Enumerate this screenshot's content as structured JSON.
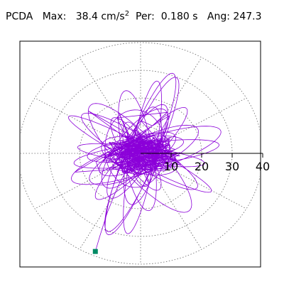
{
  "header": {
    "label": "PCDA",
    "max_label": "Max:",
    "max_value": "38.4",
    "max_unit": "cm/s",
    "max_unit_exp": "2",
    "per_label": "Per:",
    "per_value": "0.180",
    "per_unit": "s",
    "ang_label": "Ang:",
    "ang_value": "247.3"
  },
  "chart_data": {
    "type": "polar-trace",
    "title": "PCDA",
    "radial_ticks": [
      10,
      20,
      30,
      40
    ],
    "radial_tick_labels": [
      "10",
      "20",
      "30",
      "40"
    ],
    "rmax": 40,
    "angular_grid_deg": [
      0,
      30,
      60,
      90,
      120,
      150,
      180,
      210,
      240,
      270,
      300,
      330
    ],
    "grid": true,
    "max_magnitude": 38.4,
    "max_angle_deg": 247.3,
    "period_s": 0.18,
    "colors": {
      "trace": "#8b00d9",
      "marker": "#008a64",
      "grid": "#666666",
      "axis": "#000000"
    },
    "series": [
      {
        "loops": [
          {
            "a": 10,
            "b": 4,
            "theta": 12
          },
          {
            "a": 14,
            "b": 5,
            "theta": 28
          },
          {
            "a": 16,
            "b": 4,
            "theta": 10
          },
          {
            "a": 13,
            "b": 6,
            "theta": 162
          },
          {
            "a": 11,
            "b": 4,
            "theta": 175
          },
          {
            "a": 19,
            "b": 5,
            "theta": 62
          },
          {
            "a": 22,
            "b": 4.5,
            "theta": 48
          },
          {
            "a": 17,
            "b": 6,
            "theta": 55
          },
          {
            "a": 15,
            "b": 4,
            "theta": 120
          },
          {
            "a": 12,
            "b": 3.5,
            "theta": 105
          },
          {
            "a": 18,
            "b": 5,
            "theta": 78
          },
          {
            "a": 24,
            "b": 4,
            "theta": 8
          },
          {
            "a": 21,
            "b": 3,
            "theta": 172
          },
          {
            "a": 20,
            "b": 6,
            "theta": 28
          },
          {
            "a": 14,
            "b": 10,
            "theta": 90
          },
          {
            "a": 9,
            "b": 6,
            "theta": 40
          },
          {
            "a": 30,
            "b": 5,
            "theta": 68
          },
          {
            "a": 28,
            "b": 4,
            "theta": 80
          },
          {
            "a": 25,
            "b": 7,
            "theta": 130
          },
          {
            "a": 23,
            "b": 5,
            "theta": 145
          },
          {
            "a": 26,
            "b": 6,
            "theta": 20
          },
          {
            "a": 31,
            "b": 5,
            "theta": 70
          },
          {
            "a": 27,
            "b": 3.5,
            "theta": 150
          },
          {
            "a": 22,
            "b": 5,
            "theta": 100
          }
        ],
        "end_point": {
          "r": 38.4,
          "theta": 247.3
        }
      }
    ]
  }
}
